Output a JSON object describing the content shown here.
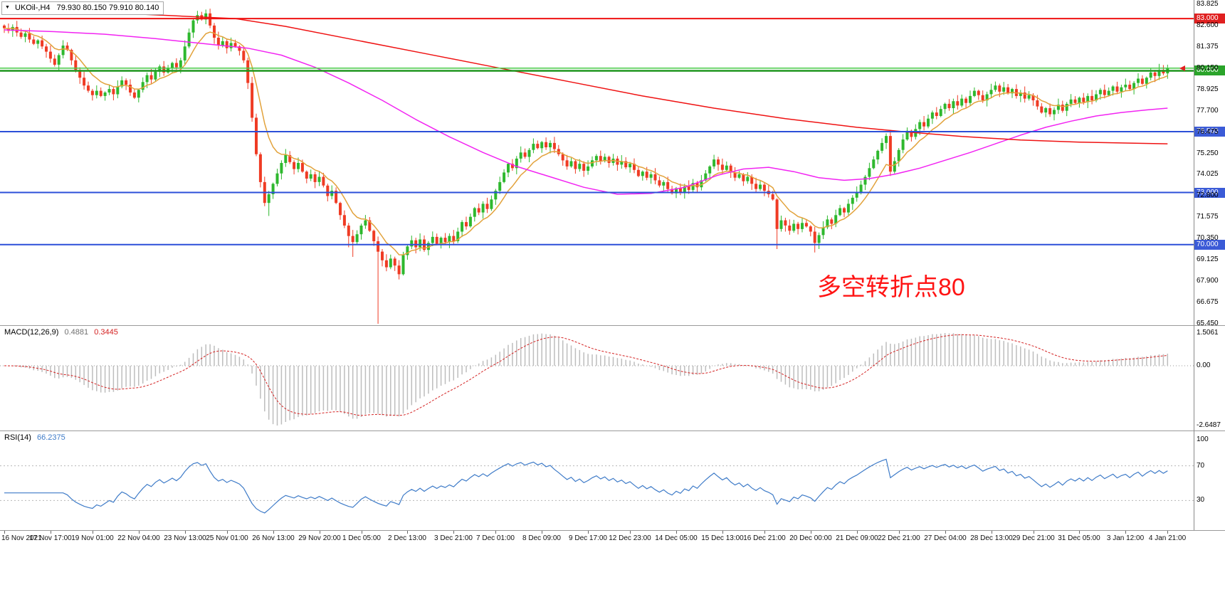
{
  "window": {
    "title": "UKOil-,H4"
  },
  "icons": {
    "collapse": "▼"
  },
  "header": {
    "symbol_tf": "UKOil-,H4",
    "ohlc_text": "79.930 80.150 79.910 80.140",
    "open": 79.93,
    "high": 80.15,
    "low": 79.91,
    "close": 80.14
  },
  "annotation": {
    "text": "多空转折点80",
    "color": "#ff1414"
  },
  "macd_panel": {
    "label": "MACD(12,26,9)",
    "value_main": "0.4881",
    "value_signal": "0.3445",
    "scale": [
      "1.5061",
      "0.00",
      "-2.6487"
    ]
  },
  "rsi_panel": {
    "label": "RSI(14)",
    "value": "66.2375",
    "scale": [
      "100",
      "70",
      "30"
    ],
    "scale_values": [
      100,
      70,
      30
    ]
  },
  "chart_data": {
    "type": "candlestick",
    "symbol": "UKOil-",
    "timeframe": "H4",
    "last_ohlc": {
      "open": 79.93,
      "high": 80.15,
      "low": 79.91,
      "close": 80.14
    },
    "y_axis_ticks": [
      "83.825",
      "82.600",
      "81.375",
      "80.150",
      "78.925",
      "77.700",
      "76.475",
      "75.250",
      "74.025",
      "72.800",
      "71.575",
      "70.350",
      "69.125",
      "67.900",
      "66.675",
      "65.450"
    ],
    "x_labels": [
      "16 Nov 2021",
      "17 Nov 17:00",
      "19 Nov 01:00",
      "22 Nov 04:00",
      "23 Nov 13:00",
      "25 Nov 01:00",
      "26 Nov 13:00",
      "29 Nov 20:00",
      "1 Dec 05:00",
      "2 Dec 13:00",
      "3 Dec 21:00",
      "7 Dec 01:00",
      "8 Dec 09:00",
      "9 Dec 17:00",
      "12 Dec 23:00",
      "14 Dec 05:00",
      "15 Dec 13:00",
      "16 Dec 21:00",
      "20 Dec 00:00",
      "21 Dec 09:00",
      "22 Dec 21:00",
      "27 Dec 04:00",
      "28 Dec 13:00",
      "29 Dec 21:00",
      "31 Dec 05:00",
      "3 Jan 12:00",
      "4 Jan 21:00"
    ],
    "x_label_bars": [
      0,
      11,
      21,
      32,
      43,
      53,
      64,
      75,
      85,
      96,
      107,
      117,
      128,
      139,
      149,
      160,
      171,
      181,
      192,
      203,
      213,
      224,
      235,
      245,
      256,
      267,
      277
    ],
    "first_open": 82.6,
    "closes": [
      82.45,
      82.3,
      82.52,
      82.2,
      81.95,
      82.15,
      81.8,
      81.55,
      81.75,
      81.4,
      81.1,
      80.7,
      80.35,
      80.9,
      81.45,
      81.2,
      80.6,
      80.05,
      79.6,
      79.15,
      78.85,
      78.6,
      78.85,
      78.55,
      78.75,
      78.95,
      78.65,
      79.1,
      79.45,
      79.2,
      78.75,
      78.45,
      78.9,
      79.35,
      79.75,
      79.5,
      79.95,
      80.25,
      79.9,
      80.15,
      80.45,
      80.2,
      80.6,
      81.4,
      82.2,
      82.9,
      83.2,
      82.95,
      83.3,
      82.6,
      81.9,
      81.45,
      81.7,
      81.3,
      81.6,
      81.4,
      81.15,
      80.6,
      79.3,
      77.3,
      75.2,
      73.6,
      72.4,
      72.9,
      73.5,
      74.1,
      74.7,
      75.15,
      74.75,
      74.35,
      74.7,
      74.2,
      73.8,
      74.05,
      73.6,
      73.9,
      73.4,
      72.8,
      73.1,
      72.4,
      71.7,
      71.1,
      70.5,
      70.15,
      70.6,
      71.1,
      71.4,
      70.8,
      70.2,
      69.6,
      69.1,
      68.7,
      69.2,
      68.8,
      68.3,
      69.4,
      69.9,
      70.25,
      69.85,
      70.3,
      69.7,
      70.1,
      70.45,
      70.05,
      70.4,
      70.15,
      70.5,
      70.2,
      70.75,
      71.3,
      71.05,
      71.6,
      72.1,
      71.85,
      72.35,
      72.05,
      72.6,
      73.1,
      73.6,
      74.15,
      74.65,
      74.4,
      74.95,
      75.3,
      75.05,
      75.45,
      75.8,
      75.55,
      75.9,
      75.6,
      75.85,
      75.5,
      75.2,
      74.85,
      74.5,
      74.8,
      74.35,
      74.65,
      74.25,
      74.5,
      74.85,
      75.1,
      74.8,
      75.05,
      74.7,
      74.95,
      74.6,
      74.8,
      74.45,
      74.65,
      74.3,
      73.95,
      74.2,
      73.85,
      74.05,
      73.7,
      73.4,
      73.6,
      73.2,
      72.95,
      73.25,
      73.0,
      73.35,
      73.15,
      73.55,
      73.3,
      73.7,
      74.1,
      74.5,
      74.9,
      74.6,
      74.3,
      74.55,
      74.15,
      73.85,
      74.05,
      73.65,
      73.9,
      73.5,
      73.2,
      73.45,
      73.1,
      72.9,
      72.6,
      70.9,
      71.4,
      71.1,
      70.8,
      71.2,
      70.9,
      71.25,
      71.05,
      70.75,
      70.1,
      70.55,
      71.0,
      71.45,
      71.2,
      71.7,
      72.1,
      71.85,
      72.35,
      72.7,
      73.0,
      73.45,
      73.9,
      74.4,
      74.9,
      75.4,
      75.85,
      76.25,
      74.2,
      74.8,
      75.45,
      76.05,
      76.55,
      76.2,
      76.65,
      77.05,
      76.8,
      77.25,
      77.6,
      77.4,
      77.8,
      78.1,
      77.85,
      78.25,
      78.0,
      78.4,
      78.15,
      78.55,
      78.85,
      78.6,
      78.3,
      78.65,
      78.9,
      79.15,
      78.8,
      79.05,
      78.7,
      78.95,
      78.55,
      78.75,
      78.4,
      78.6,
      78.3,
      77.95,
      77.6,
      77.85,
      77.5,
      77.75,
      78.05,
      77.7,
      78.1,
      78.35,
      78.15,
      78.45,
      78.2,
      78.55,
      78.3,
      78.65,
      78.9,
      78.6,
      78.85,
      79.1,
      78.8,
      79.05,
      79.2,
      78.95,
      79.3,
      79.55,
      79.25,
      79.6,
      79.9,
      79.7,
      80.05,
      79.85,
      80.14
    ],
    "wick_overrides": [
      {
        "b": 46,
        "h": 83.45
      },
      {
        "b": 48,
        "h": 83.52
      },
      {
        "b": 63,
        "l": 71.65
      },
      {
        "b": 82,
        "l": 69.85
      },
      {
        "b": 83,
        "l": 69.3
      },
      {
        "b": 89,
        "l": 65.45
      },
      {
        "b": 94,
        "l": 68.0
      },
      {
        "b": 184,
        "l": 69.75
      },
      {
        "b": 193,
        "l": 69.55
      },
      {
        "b": 211,
        "l": 73.95
      },
      {
        "b": 276,
        "h": 80.33
      },
      {
        "b": 277,
        "h": 80.35
      }
    ],
    "hlines": [
      {
        "price": 83.0,
        "color": "#ef1212",
        "width": 2,
        "badge": "83.000",
        "badge_color": "#e02020"
      },
      {
        "price": 80.15,
        "color": "#45c945",
        "width": 1.5
      },
      {
        "price": 80.0,
        "color": "#1e961e",
        "width": 2.5,
        "badge": "80.000",
        "badge_color": "#2aa42a"
      },
      {
        "price": 76.5,
        "color": "#2c4fd8",
        "width": 2,
        "badge": "76.500",
        "badge_color": "#3b5bd7"
      },
      {
        "price": 73.0,
        "color": "#2c4fd8",
        "width": 2,
        "badge": "73.000",
        "badge_color": "#3b5bd7"
      },
      {
        "price": 70.0,
        "color": "#2c4fd8",
        "width": 2,
        "badge": "70.000",
        "badge_color": "#3b5bd7"
      }
    ],
    "moving_averages": {
      "fast": {
        "kind": "ema",
        "period": 9,
        "color": "#e2a23b"
      },
      "medium": {
        "color": "#f224f2",
        "points": [
          [
            0,
            82.35
          ],
          [
            12,
            82.25
          ],
          [
            24,
            82.1
          ],
          [
            36,
            81.85
          ],
          [
            48,
            81.55
          ],
          [
            58,
            81.3
          ],
          [
            66,
            80.9
          ],
          [
            74,
            80.2
          ],
          [
            82,
            79.3
          ],
          [
            90,
            78.3
          ],
          [
            98,
            77.2
          ],
          [
            106,
            76.2
          ],
          [
            114,
            75.3
          ],
          [
            122,
            74.5
          ],
          [
            130,
            73.9
          ],
          [
            138,
            73.3
          ],
          [
            146,
            72.9
          ],
          [
            154,
            72.95
          ],
          [
            162,
            73.3
          ],
          [
            170,
            74.0
          ],
          [
            176,
            74.35
          ],
          [
            182,
            74.45
          ],
          [
            188,
            74.2
          ],
          [
            194,
            73.85
          ],
          [
            200,
            73.7
          ],
          [
            206,
            73.8
          ],
          [
            212,
            74.05
          ],
          [
            218,
            74.4
          ],
          [
            224,
            74.85
          ],
          [
            230,
            75.3
          ],
          [
            236,
            75.8
          ],
          [
            242,
            76.3
          ],
          [
            248,
            76.75
          ],
          [
            254,
            77.1
          ],
          [
            260,
            77.4
          ],
          [
            266,
            77.6
          ],
          [
            272,
            77.75
          ],
          [
            277,
            77.85
          ]
        ]
      },
      "slow": {
        "color": "#ef1212",
        "points": [
          [
            0,
            83.35
          ],
          [
            30,
            83.28
          ],
          [
            55,
            83.0
          ],
          [
            67,
            82.55
          ],
          [
            84,
            81.75
          ],
          [
            101,
            80.95
          ],
          [
            118,
            80.15
          ],
          [
            135,
            79.35
          ],
          [
            152,
            78.55
          ],
          [
            169,
            77.85
          ],
          [
            186,
            77.25
          ],
          [
            203,
            76.75
          ],
          [
            214,
            76.5
          ],
          [
            228,
            76.22
          ],
          [
            242,
            76.02
          ],
          [
            256,
            75.9
          ],
          [
            268,
            75.84
          ],
          [
            277,
            75.8
          ]
        ]
      }
    },
    "macd": {
      "fast": 12,
      "slow": 26,
      "signal": 9,
      "hist_color": "#bdbdbd",
      "signal_color": "#d42222",
      "scale_max": 1.5061,
      "scale_min": -2.6487
    },
    "rsi": {
      "period": 14,
      "color": "#3e7bc8",
      "levels": [
        70,
        30
      ]
    },
    "colors": {
      "up": "#2eb82e",
      "down": "#ef3b24",
      "background": "#ffffff",
      "axis_text": "#000000"
    },
    "current_price_marker": {
      "price": 80.14,
      "color": "#e02020"
    }
  }
}
